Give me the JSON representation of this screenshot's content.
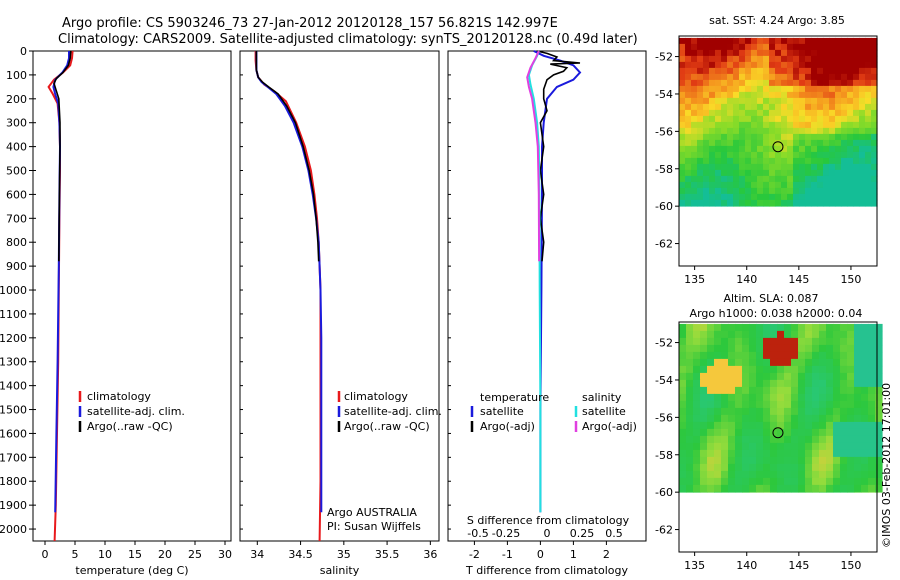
{
  "title": {
    "line1": "Argo profile: CS 5903246_73 27-Jan-2012 20120128_157 56.821S 142.997E",
    "line2": "Climatology: CARS2009. Satellite-adjusted climatology: synTS_20120128.nc (0.49d later)"
  },
  "colors": {
    "climatology": "#e8191c",
    "satellite": "#1a1adc",
    "argo": "#000000",
    "salinity_satellite": "#22e0e0",
    "salinity_argo": "#e040e0"
  },
  "credit": "©IMOS 03-Feb-2012 17:01:00",
  "chart_data": [
    {
      "type": "line",
      "name": "temperature",
      "xlabel": "temperature (deg C)",
      "xlim": [
        -2,
        31
      ],
      "xticks": [
        0,
        5,
        10,
        15,
        20,
        25,
        30
      ],
      "ylim": [
        0,
        2050
      ],
      "yticks": [
        0,
        100,
        200,
        300,
        400,
        500,
        600,
        700,
        800,
        900,
        1000,
        1100,
        1200,
        1300,
        1400,
        1500,
        1600,
        1700,
        1800,
        1900,
        2000
      ],
      "legend": [
        "climatology",
        "satellite-adj. clim.",
        "Argo(..raw -QC)"
      ],
      "series": [
        {
          "key": "climatology",
          "points": [
            [
              4.6,
              0
            ],
            [
              4.5,
              30
            ],
            [
              4.2,
              60
            ],
            [
              3.0,
              90
            ],
            [
              1.5,
              120
            ],
            [
              0.6,
              150
            ],
            [
              1.3,
              180
            ],
            [
              2.1,
              220
            ],
            [
              2.4,
              300
            ],
            [
              2.5,
              400
            ],
            [
              2.5,
              500
            ],
            [
              2.4,
              700
            ],
            [
              2.3,
              1000
            ],
            [
              2.2,
              1300
            ],
            [
              2.0,
              1600
            ],
            [
              1.8,
              1900
            ],
            [
              1.6,
              2050
            ]
          ]
        },
        {
          "key": "satellite",
          "points": [
            [
              4.0,
              0
            ],
            [
              4.0,
              30
            ],
            [
              3.7,
              60
            ],
            [
              2.9,
              90
            ],
            [
              1.7,
              120
            ],
            [
              1.4,
              150
            ],
            [
              1.7,
              180
            ],
            [
              2.2,
              220
            ],
            [
              2.4,
              300
            ],
            [
              2.5,
              400
            ],
            [
              2.4,
              600
            ],
            [
              2.3,
              900
            ],
            [
              2.1,
              1300
            ],
            [
              1.9,
              1600
            ],
            [
              1.7,
              1930
            ]
          ]
        },
        {
          "key": "argo",
          "points": [
            [
              4.3,
              0
            ],
            [
              4.2,
              30
            ],
            [
              3.9,
              60
            ],
            [
              3.0,
              90
            ],
            [
              1.9,
              115
            ],
            [
              1.5,
              135
            ],
            [
              1.8,
              160
            ],
            [
              2.3,
              200
            ],
            [
              2.5,
              300
            ],
            [
              2.5,
              400
            ],
            [
              2.4,
              600
            ],
            [
              2.3,
              880
            ]
          ]
        }
      ]
    },
    {
      "type": "line",
      "name": "salinity",
      "xlabel": "salinity",
      "xlim": [
        33.8,
        36.1
      ],
      "xticks": [
        34,
        34.5,
        35,
        35.5,
        36
      ],
      "ylim": [
        0,
        2050
      ],
      "legend": [
        "climatology",
        "satellite-adj. clim.",
        "Argo(..raw -QC)"
      ],
      "annotation": [
        "Argo AUSTRALIA",
        "PI: Susan Wijffels"
      ],
      "series": [
        {
          "key": "climatology",
          "points": [
            [
              33.98,
              0
            ],
            [
              33.98,
              40
            ],
            [
              33.99,
              80
            ],
            [
              34.01,
              110
            ],
            [
              34.08,
              140
            ],
            [
              34.2,
              170
            ],
            [
              34.33,
              210
            ],
            [
              34.45,
              300
            ],
            [
              34.55,
              400
            ],
            [
              34.62,
              500
            ],
            [
              34.66,
              600
            ],
            [
              34.69,
              700
            ],
            [
              34.71,
              800
            ],
            [
              34.72,
              900
            ],
            [
              34.73,
              1000
            ],
            [
              34.73,
              1100
            ],
            [
              34.73,
              1400
            ],
            [
              34.73,
              1800
            ],
            [
              34.72,
              2050
            ]
          ]
        },
        {
          "key": "satellite",
          "points": [
            [
              33.99,
              0
            ],
            [
              33.99,
              40
            ],
            [
              33.99,
              80
            ],
            [
              34.01,
              110
            ],
            [
              34.05,
              130
            ],
            [
              34.12,
              150
            ],
            [
              34.22,
              180
            ],
            [
              34.32,
              230
            ],
            [
              34.42,
              300
            ],
            [
              34.52,
              400
            ],
            [
              34.59,
              500
            ],
            [
              34.64,
              600
            ],
            [
              34.68,
              700
            ],
            [
              34.71,
              800
            ],
            [
              34.72,
              900
            ],
            [
              34.73,
              1000
            ],
            [
              34.74,
              1200
            ],
            [
              34.74,
              1600
            ],
            [
              34.74,
              1930
            ]
          ]
        },
        {
          "key": "argo",
          "points": [
            [
              33.99,
              0
            ],
            [
              33.99,
              40
            ],
            [
              33.99,
              80
            ],
            [
              34.01,
              110
            ],
            [
              34.06,
              130
            ],
            [
              34.13,
              150
            ],
            [
              34.24,
              180
            ],
            [
              34.34,
              230
            ],
            [
              34.44,
              300
            ],
            [
              34.53,
              400
            ],
            [
              34.6,
              500
            ],
            [
              34.65,
              600
            ],
            [
              34.68,
              700
            ],
            [
              34.7,
              800
            ],
            [
              34.71,
              880
            ]
          ]
        }
      ]
    },
    {
      "type": "line",
      "name": "differences",
      "xlabel": "T difference from climatology",
      "xlabel_top": "S difference from climatology",
      "xlim": [
        -2.8,
        3.2
      ],
      "xticks": [
        -2,
        -1,
        0,
        1,
        2
      ],
      "s_ticks": [
        -0.5,
        -0.25,
        0,
        0.25,
        0.5
      ],
      "ylim": [
        0,
        2050
      ],
      "legend_left_title": "temperature",
      "legend_left": [
        "satellite",
        "Argo(-adj)"
      ],
      "legend_right_title": "salinity",
      "legend_right": [
        "satellite",
        "Argo(-adj)"
      ],
      "series": [
        {
          "key": "satellite",
          "points": [
            [
              -0.2,
              0
            ],
            [
              0.1,
              20
            ],
            [
              0.6,
              40
            ],
            [
              1.0,
              60
            ],
            [
              1.2,
              90
            ],
            [
              1.0,
              120
            ],
            [
              0.5,
              150
            ],
            [
              0.2,
              200
            ],
            [
              0.1,
              300
            ],
            [
              0.05,
              400
            ],
            [
              0.05,
              600
            ],
            [
              0.03,
              1000
            ],
            [
              0.0,
              1500
            ],
            [
              0.0,
              1930
            ]
          ]
        },
        {
          "key": "argo",
          "points": [
            [
              -0.1,
              0
            ],
            [
              0.2,
              10
            ],
            [
              0.5,
              25
            ],
            [
              0.4,
              40
            ],
            [
              1.2,
              50
            ],
            [
              0.3,
              55
            ],
            [
              0.8,
              70
            ],
            [
              0.7,
              85
            ],
            [
              0.4,
              100
            ],
            [
              0.2,
              120
            ],
            [
              0.1,
              160
            ],
            [
              0.1,
              200
            ],
            [
              0.2,
              250
            ],
            [
              0.0,
              300
            ],
            [
              0.1,
              400
            ],
            [
              0.0,
              500
            ],
            [
              0.1,
              600
            ],
            [
              0.0,
              700
            ],
            [
              0.1,
              800
            ],
            [
              0.05,
              880
            ]
          ]
        },
        {
          "key": "salinity_satellite",
          "points": [
            [
              -0.05,
              0
            ],
            [
              -0.1,
              20
            ],
            [
              -0.25,
              60
            ],
            [
              -0.35,
              100
            ],
            [
              -0.3,
              140
            ],
            [
              -0.2,
              200
            ],
            [
              -0.1,
              300
            ],
            [
              -0.05,
              400
            ],
            [
              -0.03,
              600
            ],
            [
              -0.02,
              1000
            ],
            [
              0.0,
              1500
            ],
            [
              0.0,
              1930
            ]
          ]
        },
        {
          "key": "salinity_argo",
          "points": [
            [
              -0.05,
              0
            ],
            [
              -0.15,
              30
            ],
            [
              -0.3,
              70
            ],
            [
              -0.4,
              110
            ],
            [
              -0.35,
              150
            ],
            [
              -0.25,
              200
            ],
            [
              -0.15,
              300
            ],
            [
              -0.08,
              400
            ],
            [
              -0.05,
              600
            ],
            [
              -0.04,
              880
            ]
          ]
        }
      ]
    },
    {
      "type": "heatmap",
      "name": "sst-map",
      "title": "sat. SST: 4.24  Argo: 3.85",
      "xticks": [
        135,
        140,
        145,
        150
      ],
      "yticks": [
        -52,
        -54,
        -56,
        -58,
        -60,
        -62
      ],
      "xlim": [
        133.5,
        152.5
      ],
      "ylim": [
        -63.2,
        -50.9
      ],
      "data_lat_range": [
        -51.0,
        -60.0
      ],
      "marker": {
        "lon": 142.997,
        "lat": -56.821
      }
    },
    {
      "type": "heatmap",
      "name": "sla-map",
      "title_line1": "Altim. SLA: 0.087",
      "title_line2": "Argo h1000: 0.038 h2000: 0.04",
      "xticks": [
        135,
        140,
        145,
        150
      ],
      "yticks": [
        -52,
        -54,
        -56,
        -58,
        -60,
        -62
      ],
      "xlim": [
        133.5,
        152.5
      ],
      "ylim": [
        -63.2,
        -50.9
      ],
      "data_lat_range": [
        -51.0,
        -60.0
      ],
      "marker": {
        "lon": 142.997,
        "lat": -56.821
      }
    }
  ]
}
